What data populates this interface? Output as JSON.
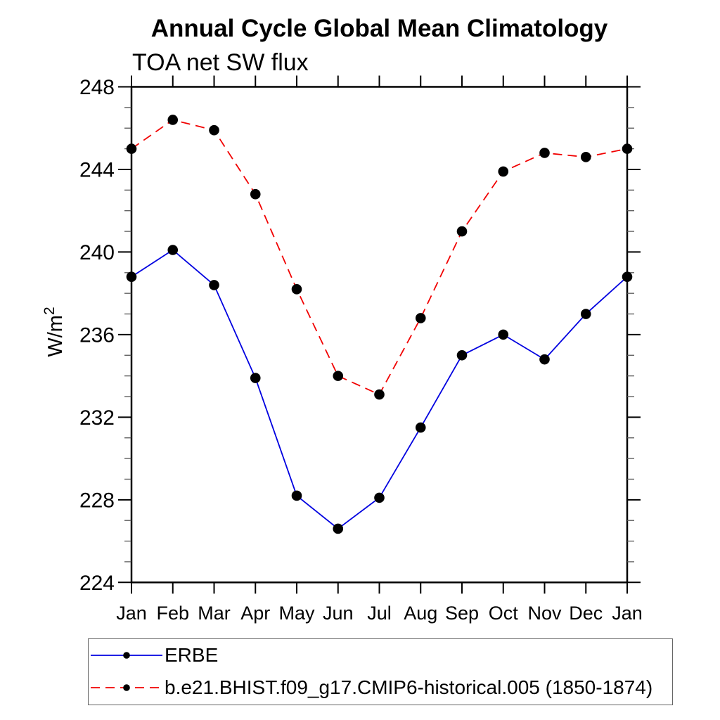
{
  "header": {
    "title": "Annual Cycle Global Mean Climatology",
    "subtitle": "TOA net SW flux"
  },
  "y_axis": {
    "label_base": "W/m",
    "label_exponent": "2"
  },
  "legend": {
    "items": [
      {
        "label": "ERBE"
      },
      {
        "label": "b.e21.BHIST.f09_g17.CMIP6-historical.005 (1850-1874)"
      }
    ]
  },
  "chart_data": {
    "type": "line",
    "title": "Annual Cycle Global Mean Climatology",
    "subtitle": "TOA net SW flux",
    "xlabel": "",
    "ylabel": "W/m^2",
    "categories": [
      "Jan",
      "Feb",
      "Mar",
      "Apr",
      "May",
      "Jun",
      "Jul",
      "Aug",
      "Sep",
      "Oct",
      "Nov",
      "Dec",
      "Jan"
    ],
    "series": [
      {
        "name": "ERBE",
        "color": "#0000e0",
        "line_style": "solid",
        "marker": "filled-circle",
        "marker_color": "#000000",
        "values": [
          238.8,
          240.1,
          238.4,
          233.9,
          228.2,
          226.6,
          228.1,
          231.5,
          235.0,
          236.0,
          234.8,
          237.0,
          238.8
        ]
      },
      {
        "name": "b.e21.BHIST.f09_g17.CMIP6-historical.005 (1850-1874)",
        "color": "#f10000",
        "line_style": "dashed",
        "marker": "filled-circle",
        "marker_color": "#000000",
        "values": [
          245.0,
          246.4,
          245.9,
          242.8,
          238.2,
          234.0,
          233.1,
          236.8,
          241.0,
          243.9,
          244.8,
          244.6,
          245.0
        ]
      }
    ],
    "ylim": [
      224,
      248
    ],
    "y_major_ticks": [
      224,
      228,
      232,
      236,
      240,
      244,
      248
    ],
    "y_minor_step": 1,
    "grid": false,
    "legend_position": "bottom-left-box",
    "axis_color": "#000000",
    "minor_tick_color": "#555555"
  }
}
